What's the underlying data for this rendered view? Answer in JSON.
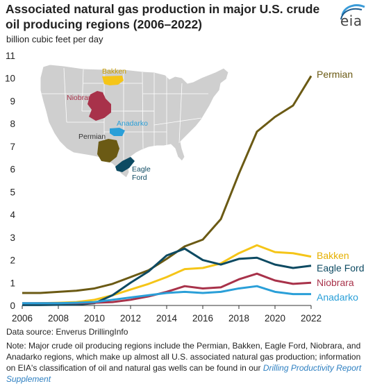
{
  "title": "Associated natural gas production in major U.S. crude oil producing regions (2006–2022)",
  "subtitle": "billion cubic feet per day",
  "logo_text": "eia",
  "source": "Data source: Enverus DrillingInfo",
  "note_text": "Note: Major crude oil producing regions include the Permian, Bakken, Eagle Ford, Niobrara, and Anadarko regions, which make up almost all U.S. associated natural gas production; information on EIA's classification of oil and natural gas wells can be found in our ",
  "note_link": "Drilling Productivity Report Supplement",
  "map": {
    "labels": [
      "Bakken",
      "Niobrara",
      "Anadarko",
      "Permian",
      "Eagle",
      "Ford"
    ]
  },
  "chart_data": {
    "type": "line",
    "xlim": [
      2006,
      2022
    ],
    "ylim": [
      0,
      11
    ],
    "x_ticks": [
      2006,
      2008,
      2010,
      2012,
      2014,
      2016,
      2018,
      2020,
      2022
    ],
    "y_ticks": [
      0,
      1,
      2,
      3,
      4,
      5,
      6,
      7,
      8,
      9,
      10,
      11
    ],
    "grid": false,
    "legend": "right end labels",
    "x": [
      2006,
      2007,
      2008,
      2009,
      2010,
      2011,
      2012,
      2013,
      2014,
      2015,
      2016,
      2017,
      2018,
      2019,
      2020,
      2021,
      2022
    ],
    "series": [
      {
        "name": "Permian",
        "color": "#6b5a14",
        "values": [
          0.55,
          0.55,
          0.6,
          0.65,
          0.75,
          0.95,
          1.25,
          1.55,
          2.05,
          2.6,
          2.9,
          3.8,
          5.8,
          7.65,
          8.3,
          8.8,
          10.1
        ]
      },
      {
        "name": "Bakken",
        "color": "#f5c518",
        "values": [
          0.08,
          0.1,
          0.12,
          0.15,
          0.25,
          0.45,
          0.7,
          0.95,
          1.25,
          1.6,
          1.65,
          1.85,
          2.3,
          2.65,
          2.35,
          2.3,
          2.15
        ]
      },
      {
        "name": "Eagle Ford",
        "color": "#0d4a62",
        "values": [
          0.02,
          0.02,
          0.03,
          0.04,
          0.1,
          0.45,
          1.0,
          1.5,
          2.2,
          2.5,
          2.0,
          1.8,
          2.05,
          2.1,
          1.8,
          1.65,
          1.75
        ]
      },
      {
        "name": "Niobrara",
        "color": "#a8324a",
        "values": [
          0.1,
          0.1,
          0.1,
          0.1,
          0.12,
          0.15,
          0.25,
          0.4,
          0.6,
          0.85,
          0.75,
          0.8,
          1.15,
          1.4,
          1.1,
          0.95,
          1.0
        ]
      },
      {
        "name": "Anadarko",
        "color": "#2a9fd8",
        "values": [
          0.1,
          0.1,
          0.1,
          0.12,
          0.15,
          0.25,
          0.35,
          0.45,
          0.55,
          0.6,
          0.55,
          0.6,
          0.75,
          0.85,
          0.6,
          0.5,
          0.5
        ]
      }
    ]
  }
}
